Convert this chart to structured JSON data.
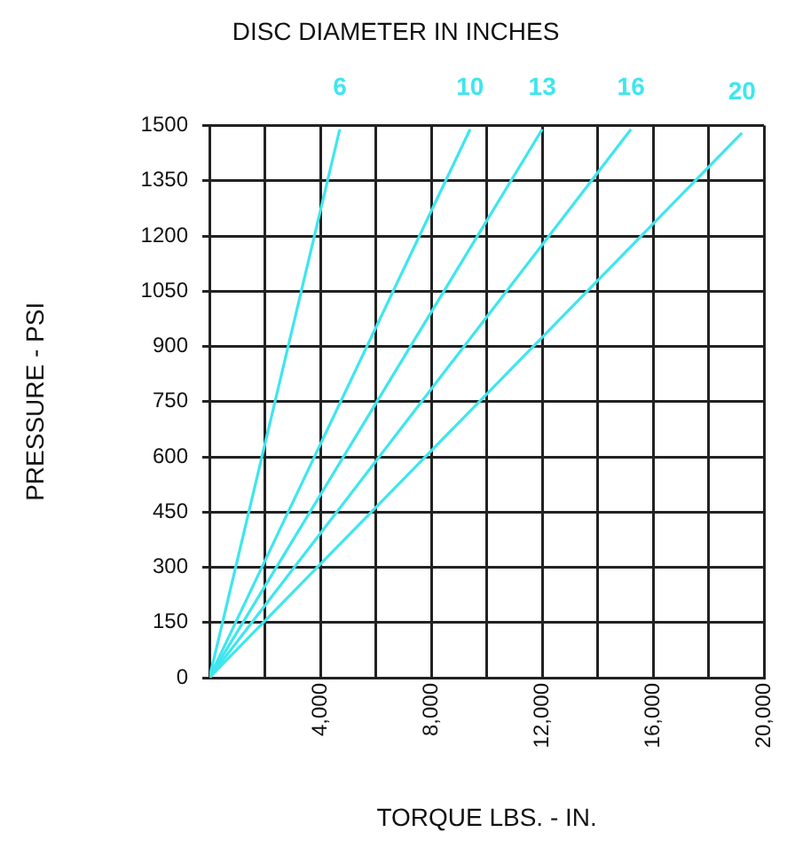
{
  "chart_data": {
    "type": "line",
    "title": "DISC DIAMETER IN INCHES",
    "xlabel": "TORQUE LBS. - IN.",
    "ylabel": "PRESSURE - PSI",
    "xlim": [
      0,
      20000
    ],
    "xticks": [
      {
        "value": 0,
        "label": null
      },
      {
        "value": 2000,
        "label": null
      },
      {
        "value": 4000,
        "label": "4,000"
      },
      {
        "value": 6000,
        "label": null
      },
      {
        "value": 8000,
        "label": "8,000"
      },
      {
        "value": 10000,
        "label": null
      },
      {
        "value": 12000,
        "label": "12,000"
      },
      {
        "value": 14000,
        "label": null
      },
      {
        "value": 16000,
        "label": "16,000"
      },
      {
        "value": 18000,
        "label": null
      },
      {
        "value": 20000,
        "label": "20,000"
      }
    ],
    "ylim": [
      0,
      1500
    ],
    "yticks": [
      0,
      150,
      300,
      450,
      600,
      750,
      900,
      1050,
      1200,
      1350,
      1500
    ],
    "grid": true,
    "legend": false,
    "marker": "none",
    "line_style": "solid",
    "series": [
      {
        "name": "6",
        "color": "#3ee6ee",
        "x": [
          0,
          4700
        ],
        "values": [
          0,
          1490
        ]
      },
      {
        "name": "10",
        "color": "#3ee6ee",
        "x": [
          0,
          9400
        ],
        "values": [
          0,
          1490
        ]
      },
      {
        "name": "13",
        "color": "#3ee6ee",
        "x": [
          0,
          12000
        ],
        "values": [
          0,
          1490
        ]
      },
      {
        "name": "16",
        "color": "#3ee6ee",
        "x": [
          0,
          15200
        ],
        "values": [
          0,
          1490
        ]
      },
      {
        "name": "20",
        "color": "#3ee6ee",
        "x": [
          0,
          19200
        ],
        "values": [
          0,
          1480
        ]
      }
    ]
  }
}
